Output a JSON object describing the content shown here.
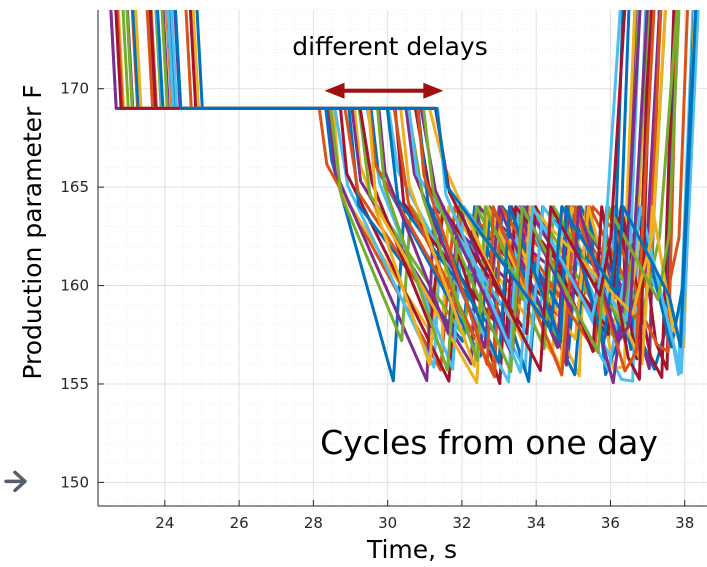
{
  "chart_data": {
    "type": "line",
    "title": "",
    "xlabel": "Time, s",
    "ylabel": "Production parameter F",
    "xlim": [
      22.2,
      38.6
    ],
    "ylim": [
      148.8,
      174
    ],
    "xticks": [
      24,
      26,
      28,
      30,
      32,
      34,
      36,
      38
    ],
    "yticks": [
      150,
      155,
      160,
      165,
      170
    ],
    "grid": true,
    "minor_grid": true,
    "series_colors": [
      "#0072BD",
      "#D95319",
      "#EDB120",
      "#7E2F8E",
      "#77AC30",
      "#4DBEEE",
      "#A2142F"
    ],
    "cycle_count": 36,
    "pattern": {
      "start_level": 169,
      "delay_start_range": [
        28.2,
        31.4
      ],
      "descent_min_range": [
        155,
        164
      ],
      "oscillation_band": [
        155,
        164
      ],
      "rise_time_range": [
        35.8,
        38.0
      ],
      "early_rise_from_start_range": [
        22.4,
        24.9
      ]
    },
    "annotations": {
      "delays_label": "different delays",
      "cycles_label": "Cycles from one day",
      "delay_arrow_range": [
        28.3,
        31.5
      ],
      "delay_arrow_y": 169.9
    },
    "arrow_marker_y": 150,
    "arrow_marker_icon": "right-arrow-icon"
  }
}
